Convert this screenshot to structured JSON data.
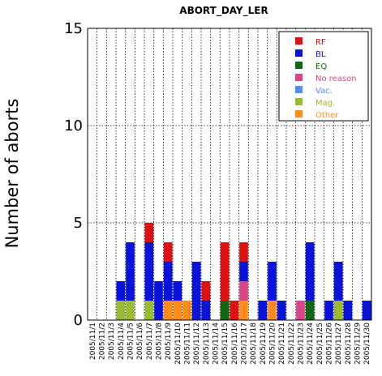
{
  "chart_data": {
    "type": "bar",
    "stacked": true,
    "title": "ABORT_DAY_LER",
    "xlabel": "",
    "ylabel": "Number of aborts",
    "ylim": [
      0,
      15
    ],
    "yticks": [
      0,
      5,
      10,
      15
    ],
    "grid": true,
    "legend_position": "top-right",
    "categories": [
      "2005/11/1",
      "2005/11/2",
      "2005/11/3",
      "2005/11/4",
      "2005/11/5",
      "2005/11/6",
      "2005/11/7",
      "2005/11/8",
      "2005/11/9",
      "2005/11/10",
      "2005/11/11",
      "2005/11/12",
      "2005/11/13",
      "2005/11/14",
      "2005/11/15",
      "2005/11/16",
      "2005/11/17",
      "2005/11/18",
      "2005/11/19",
      "2005/11/20",
      "2005/11/21",
      "2005/11/22",
      "2005/11/23",
      "2005/11/24",
      "2005/11/25",
      "2005/11/26",
      "2005/11/27",
      "2005/11/28",
      "2005/11/29",
      "2005/11/30"
    ],
    "series": [
      {
        "name": "EQ",
        "color": "#116611",
        "values": [
          0,
          0,
          0,
          0,
          0,
          0,
          0,
          0,
          0,
          0,
          0,
          0,
          0,
          0,
          1,
          0,
          0,
          0,
          0,
          0,
          0,
          0,
          0,
          1,
          0,
          0,
          0,
          0,
          0,
          0
        ]
      },
      {
        "name": "Mag.",
        "color": "#99bb33",
        "values": [
          0,
          0,
          0,
          1,
          1,
          0,
          1,
          0,
          0,
          0,
          0,
          0,
          0,
          0,
          0,
          0,
          0,
          0,
          0,
          0,
          0,
          0,
          0,
          0,
          0,
          0,
          1,
          0,
          0,
          0
        ]
      },
      {
        "name": "Other",
        "color": "#ff8c1a",
        "values": [
          0,
          0,
          0,
          0,
          0,
          0,
          0,
          0,
          1,
          1,
          1,
          0,
          0,
          0,
          0,
          0,
          1,
          0,
          0,
          1,
          0,
          0,
          0,
          0,
          0,
          0,
          0,
          0,
          0,
          0
        ]
      },
      {
        "name": "No reason",
        "color": "#dd4488",
        "values": [
          0,
          0,
          0,
          0,
          0,
          0,
          0,
          0,
          0,
          0,
          0,
          0,
          0,
          0,
          0,
          0,
          1,
          0,
          0,
          0,
          0,
          0,
          1,
          0,
          0,
          0,
          0,
          0,
          0,
          0
        ]
      },
      {
        "name": "Vac.",
        "color": "#5588ff",
        "values": [
          0,
          0,
          0,
          0,
          0,
          0,
          0,
          0,
          0,
          0,
          0,
          0,
          0,
          0,
          0,
          0,
          0,
          0,
          0,
          0,
          0,
          0,
          0,
          0,
          0,
          0,
          0,
          0,
          0,
          0
        ]
      },
      {
        "name": "BL",
        "color": "#0a14d8",
        "values": [
          0,
          0,
          0,
          1,
          3,
          0,
          3,
          2,
          2,
          1,
          0,
          3,
          1,
          0,
          0,
          0,
          1,
          0,
          1,
          2,
          1,
          0,
          0,
          3,
          0,
          1,
          2,
          1,
          0,
          1
        ]
      },
      {
        "name": "RF",
        "color": "#dd1111",
        "values": [
          0,
          0,
          0,
          0,
          0,
          0,
          1,
          0,
          1,
          0,
          0,
          0,
          1,
          0,
          3,
          1,
          1,
          0,
          0,
          0,
          0,
          0,
          0,
          0,
          0,
          0,
          0,
          0,
          0,
          0
        ]
      }
    ],
    "legend_order": [
      "RF",
      "BL",
      "EQ",
      "No reason",
      "Vac.",
      "Mag.",
      "Other"
    ]
  }
}
